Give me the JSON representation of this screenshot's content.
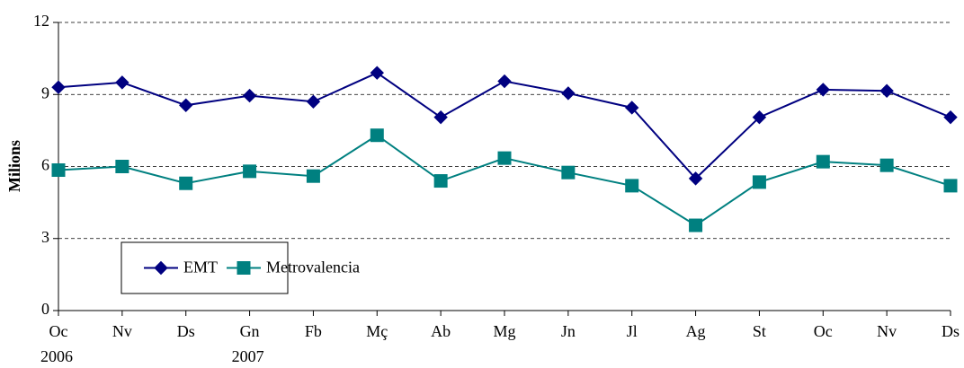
{
  "chart_data": {
    "type": "line",
    "categories": [
      "Oc",
      "Nv",
      "Ds",
      "Gn",
      "Fb",
      "Mç",
      "Ab",
      "Mg",
      "Jn",
      "Jl",
      "Ag",
      "St",
      "Oc",
      "Nv",
      "Ds"
    ],
    "years": [
      "2006",
      null,
      null,
      "2007",
      null,
      null,
      null,
      null,
      null,
      null,
      null,
      null,
      null,
      null,
      null
    ],
    "ylabel": "Milions",
    "ylim": [
      0,
      12
    ],
    "yticks": [
      0,
      3,
      6,
      9,
      12
    ],
    "grid": true,
    "legend": "lower left",
    "series": [
      {
        "name": "EMT",
        "color": "#000080",
        "marker": "diamond",
        "values": [
          9.3,
          9.5,
          8.55,
          8.95,
          8.7,
          9.9,
          8.05,
          9.55,
          9.05,
          8.45,
          5.5,
          8.05,
          9.2,
          9.15,
          8.05
        ]
      },
      {
        "name": "Metrovalencia",
        "color": "#008080",
        "marker": "square",
        "values": [
          5.85,
          6.0,
          5.3,
          5.8,
          5.6,
          7.3,
          5.4,
          6.35,
          5.75,
          5.2,
          3.55,
          5.35,
          6.2,
          6.05,
          5.2
        ]
      }
    ]
  }
}
